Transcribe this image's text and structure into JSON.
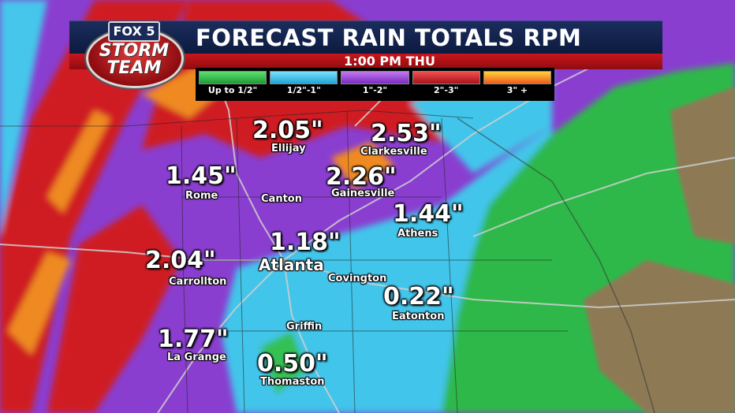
{
  "header": {
    "title": "FORECAST RAIN TOTALS RPM",
    "time": "1:00 PM THU"
  },
  "logo": {
    "fox": "FOX 5",
    "line1": "STORM",
    "line2": "TEAM"
  },
  "legend": [
    {
      "label": "Up to 1/2\"",
      "color": "#2fbf4a"
    },
    {
      "label": "1/2\"-1\"",
      "color": "#3ec8ec"
    },
    {
      "label": "1\"-2\"",
      "color": "#9a3fd6"
    },
    {
      "label": "2\"-3\"",
      "color": "#d11f22"
    },
    {
      "label": "3\" +",
      "color": "#f08a1e"
    }
  ],
  "cities": [
    {
      "name": "Ellijay",
      "value": "2.05\""
    },
    {
      "name": "Clarkesville",
      "value": "2.53\""
    },
    {
      "name": "Rome",
      "value": "1.45\""
    },
    {
      "name": "Canton",
      "value": ""
    },
    {
      "name": "Gainesville",
      "value": "2.26\""
    },
    {
      "name": "Athens",
      "value": "1.44\""
    },
    {
      "name": "Atlanta",
      "value": "1.18\""
    },
    {
      "name": "Carrollton",
      "value": "2.04\""
    },
    {
      "name": "Covington",
      "value": ""
    },
    {
      "name": "Eatonton",
      "value": "0.22\""
    },
    {
      "name": "Griffin",
      "value": ""
    },
    {
      "name": "La Grange",
      "value": "1.77\""
    },
    {
      "name": "Thomaston",
      "value": "0.50\""
    }
  ]
}
